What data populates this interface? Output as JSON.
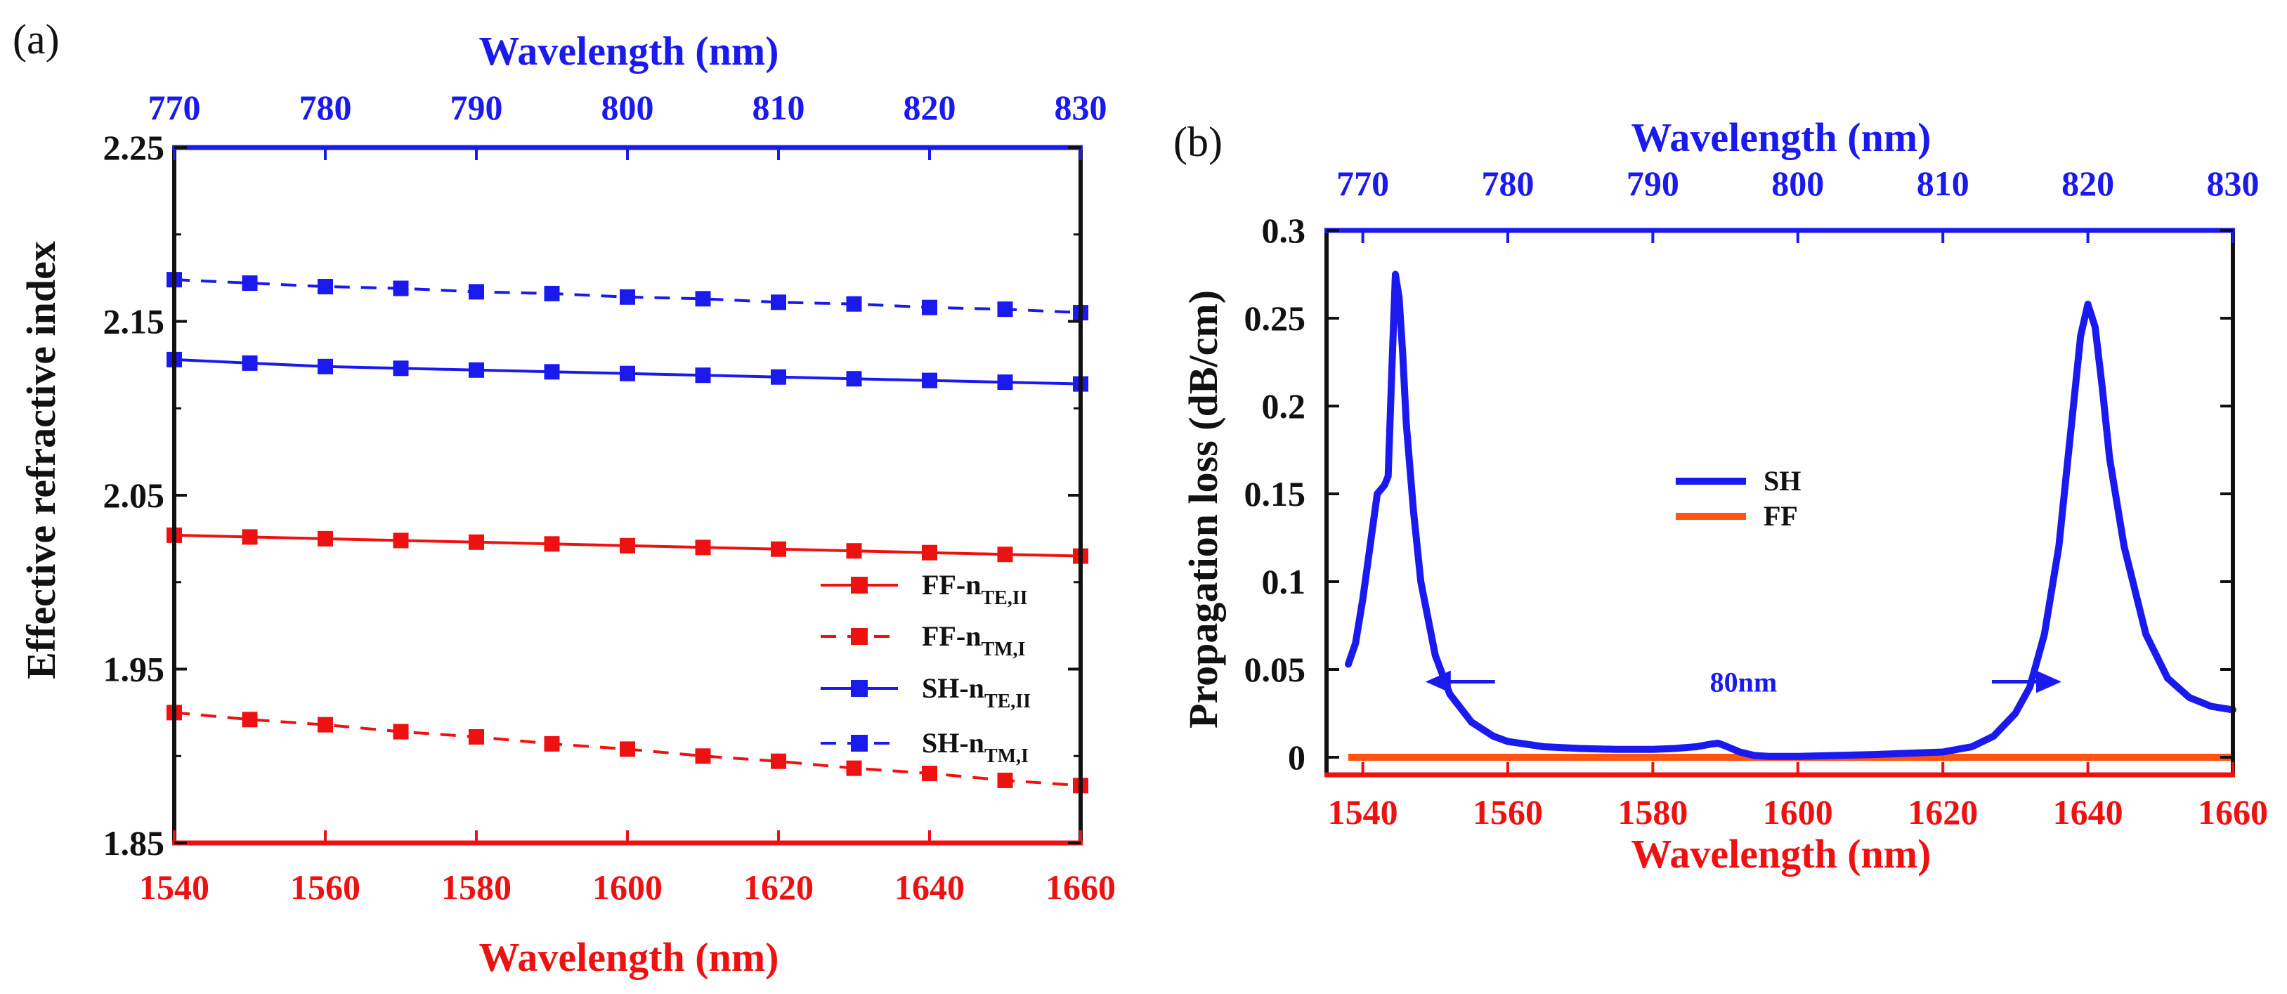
{
  "chart_data": [
    {
      "panel_label": "(a)",
      "type": "line",
      "ylabel": "Effective refractive index",
      "xlabel": "Wavelength (nm)",
      "x2label": "Wavelength (nm)",
      "xlim": [
        1540,
        1660
      ],
      "ylim": [
        1.85,
        2.25
      ],
      "x2lim": [
        770,
        830
      ],
      "xticks": [
        1540,
        1560,
        1580,
        1600,
        1620,
        1640,
        1660
      ],
      "x2ticks": [
        770,
        780,
        790,
        800,
        810,
        820,
        830
      ],
      "yticks": [
        "1.85",
        "1.95",
        "2.05",
        "2.15",
        "2.25"
      ],
      "x": [
        1540,
        1550,
        1560,
        1570,
        1580,
        1590,
        1600,
        1610,
        1620,
        1630,
        1640,
        1650,
        1660
      ],
      "legend_position": "lower-right",
      "series": [
        {
          "name": "FF-n",
          "sub": "TE,II",
          "color": "#ee1111",
          "dashed": false,
          "values": [
            2.027,
            2.026,
            2.025,
            2.024,
            2.023,
            2.022,
            2.021,
            2.02,
            2.019,
            2.018,
            2.017,
            2.016,
            2.015
          ]
        },
        {
          "name": "FF-n",
          "sub": "TM,I",
          "color": "#ee1111",
          "dashed": true,
          "values": [
            1.925,
            1.921,
            1.918,
            1.914,
            1.911,
            1.907,
            1.904,
            1.9,
            1.897,
            1.893,
            1.89,
            1.886,
            1.883
          ]
        },
        {
          "name": "SH-n",
          "sub": "TE,II",
          "color": "#1a1aee",
          "dashed": false,
          "values": [
            2.128,
            2.126,
            2.124,
            2.123,
            2.122,
            2.121,
            2.12,
            2.119,
            2.118,
            2.117,
            2.116,
            2.115,
            2.114
          ]
        },
        {
          "name": "SH-n",
          "sub": "TM,I",
          "color": "#1a1aee",
          "dashed": true,
          "values": [
            2.174,
            2.172,
            2.17,
            2.169,
            2.167,
            2.166,
            2.164,
            2.163,
            2.161,
            2.16,
            2.158,
            2.157,
            2.155
          ]
        }
      ]
    },
    {
      "panel_label": "(b)",
      "type": "line",
      "ylabel": "Propagation loss (dB/cm)",
      "xlabel": "Wavelength (nm)",
      "x2label": "Wavelength (nm)",
      "xlim": [
        1535,
        1660
      ],
      "ylim": [
        -0.01,
        0.3
      ],
      "x2lim": [
        767.5,
        830
      ],
      "xticks": [
        1540,
        1560,
        1580,
        1600,
        1620,
        1640,
        1660
      ],
      "x2ticks": [
        770,
        780,
        790,
        800,
        810,
        820,
        830
      ],
      "yticks": [
        "0",
        "0.05",
        "0.1",
        "0.15",
        "0.2",
        "0.25",
        "0.3"
      ],
      "legend_position": "center",
      "annotation": {
        "text": "80nm",
        "left_arrow_x": 1550,
        "right_arrow_x": 1635,
        "y": 0.043
      },
      "series": [
        {
          "name": "SH",
          "color": "#1a1aee",
          "x": [
            1538,
            1539,
            1540,
            1541,
            1542,
            1543,
            1543.5,
            1544,
            1544.5,
            1545,
            1545.5,
            1546,
            1547,
            1548,
            1550,
            1552,
            1555,
            1558,
            1560,
            1565,
            1570,
            1575,
            1580,
            1583,
            1586,
            1588,
            1589,
            1590,
            1592,
            1594,
            1596,
            1600,
            1610,
            1620,
            1624,
            1627,
            1630,
            1632,
            1634,
            1636,
            1637,
            1638,
            1639,
            1640,
            1641,
            1642,
            1643,
            1645,
            1648,
            1651,
            1654,
            1657,
            1660
          ],
          "y": [
            0.053,
            0.065,
            0.09,
            0.12,
            0.15,
            0.155,
            0.16,
            0.22,
            0.275,
            0.262,
            0.23,
            0.19,
            0.14,
            0.1,
            0.058,
            0.036,
            0.02,
            0.012,
            0.009,
            0.006,
            0.005,
            0.0045,
            0.0045,
            0.005,
            0.006,
            0.0075,
            0.008,
            0.0065,
            0.003,
            0.001,
            0.0005,
            0.0005,
            0.0015,
            0.003,
            0.006,
            0.012,
            0.025,
            0.04,
            0.07,
            0.12,
            0.16,
            0.2,
            0.24,
            0.258,
            0.245,
            0.21,
            0.17,
            0.12,
            0.07,
            0.045,
            0.034,
            0.029,
            0.027
          ]
        },
        {
          "name": "FF",
          "color": "#ff5511",
          "x": [
            1538,
            1660
          ],
          "y": [
            0,
            0
          ]
        }
      ]
    }
  ]
}
